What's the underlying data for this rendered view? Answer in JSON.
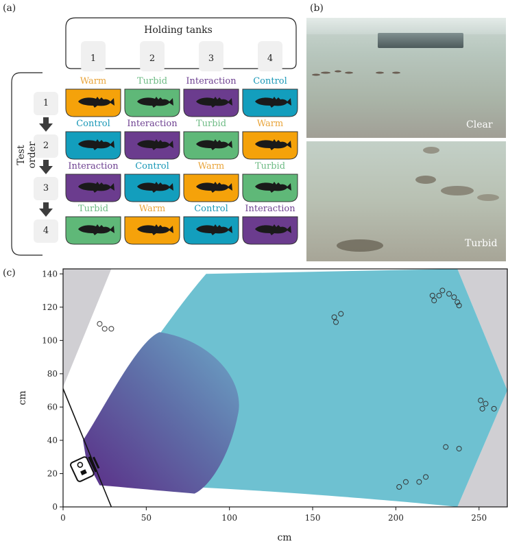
{
  "panel_a": {
    "label": "(a)",
    "holding_title": "Holding tanks",
    "holding_numbers": [
      "1",
      "2",
      "3",
      "4"
    ],
    "test_order_label": "Test order",
    "rows": [
      {
        "n": "1",
        "cells": [
          "Warm",
          "Turbid",
          "Interaction",
          "Control"
        ]
      },
      {
        "n": "2",
        "cells": [
          "Control",
          "Interaction",
          "Turbid",
          "Warm"
        ]
      },
      {
        "n": "3",
        "cells": [
          "Interaction",
          "Control",
          "Warm",
          "Turbid"
        ]
      },
      {
        "n": "4",
        "cells": [
          "Turbid",
          "Warm",
          "Control",
          "Interaction"
        ]
      }
    ],
    "colors": {
      "Warm": "#f5a20a",
      "Turbid": "#5fb878",
      "Interaction": "#6b3c8e",
      "Control": "#139ebd"
    },
    "text_colors": {
      "Warm": "#e9a43a",
      "Turbid": "#6dbb84",
      "Interaction": "#6e4191",
      "Control": "#1a98b7"
    }
  },
  "panel_b": {
    "label": "(b)",
    "clear_label": "Clear",
    "turbid_label": "Turbid"
  },
  "panel_c": {
    "label": "(c)",
    "xlabel": "cm",
    "ylabel": "cm"
  },
  "chart_data": {
    "type": "scatter",
    "xlabel": "cm",
    "ylabel": "cm",
    "xlim": [
      0,
      267
    ],
    "ylim": [
      0,
      143
    ],
    "xticks": [
      0,
      50,
      100,
      150,
      200,
      250
    ],
    "yticks": [
      0,
      20,
      40,
      60,
      80,
      100,
      120,
      140
    ],
    "points": [
      {
        "x": 22,
        "y": 110
      },
      {
        "x": 25,
        "y": 107
      },
      {
        "x": 29,
        "y": 107
      },
      {
        "x": 163,
        "y": 114
      },
      {
        "x": 164,
        "y": 111
      },
      {
        "x": 167,
        "y": 116
      },
      {
        "x": 222,
        "y": 127
      },
      {
        "x": 223,
        "y": 124
      },
      {
        "x": 226,
        "y": 127
      },
      {
        "x": 228,
        "y": 130
      },
      {
        "x": 232,
        "y": 128
      },
      {
        "x": 235,
        "y": 126
      },
      {
        "x": 237,
        "y": 123
      },
      {
        "x": 238,
        "y": 121
      },
      {
        "x": 251,
        "y": 64
      },
      {
        "x": 252,
        "y": 59
      },
      {
        "x": 254,
        "y": 62
      },
      {
        "x": 259,
        "y": 59
      },
      {
        "x": 230,
        "y": 36
      },
      {
        "x": 238,
        "y": 35
      },
      {
        "x": 202,
        "y": 12
      },
      {
        "x": 206,
        "y": 15
      },
      {
        "x": 214,
        "y": 15
      },
      {
        "x": 218,
        "y": 18
      }
    ]
  }
}
